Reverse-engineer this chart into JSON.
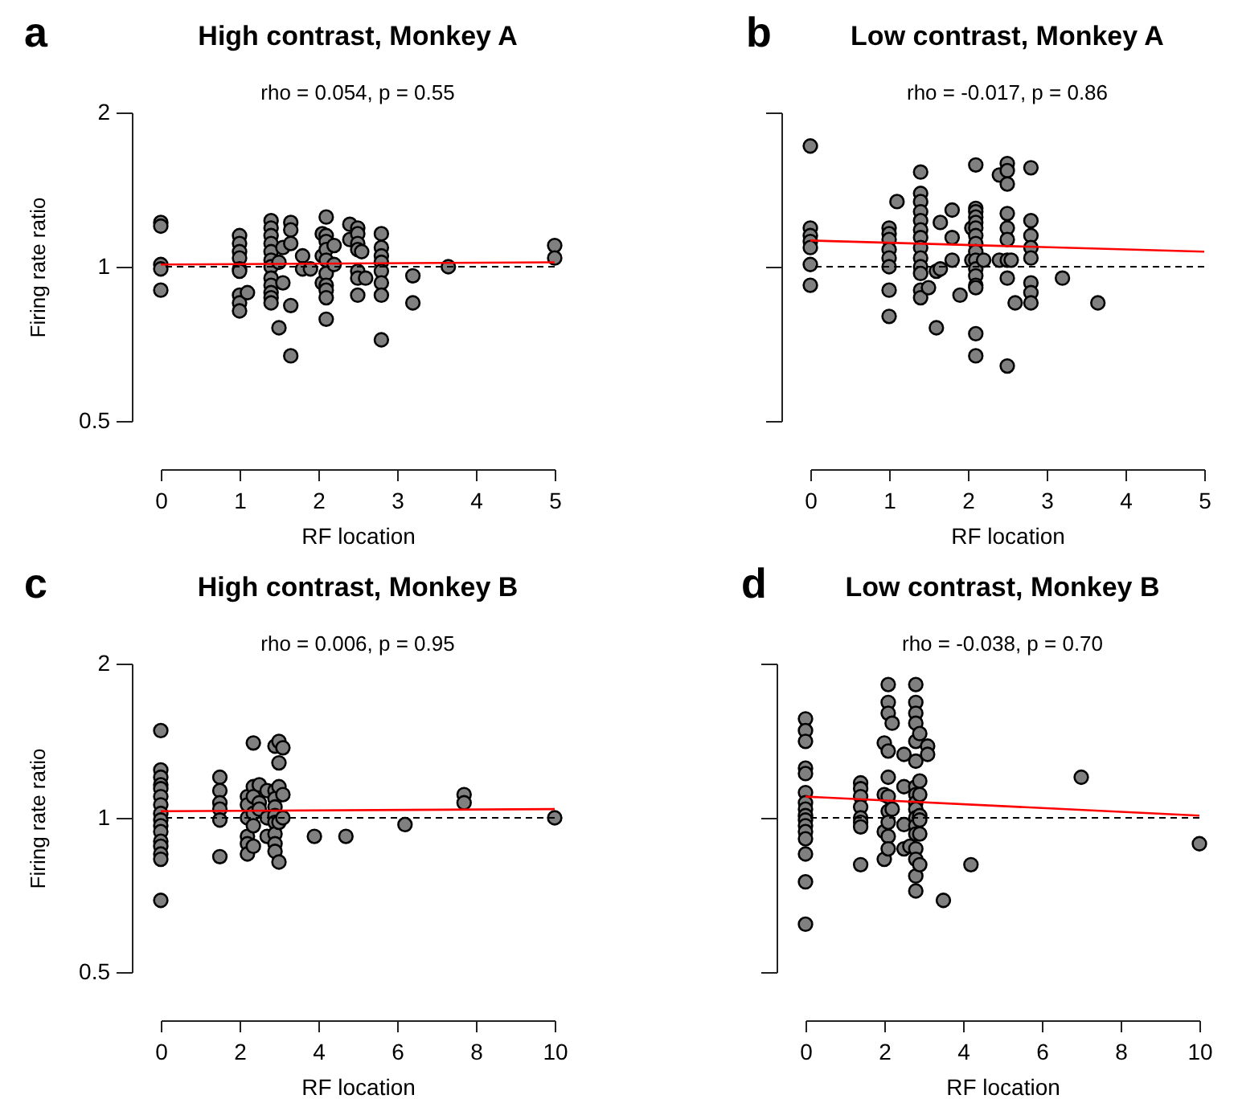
{
  "chart_data": [
    {
      "type": "scatter",
      "title": "High contrast, Monkey A",
      "subtitle": "rho = 0.054, p = 0.55",
      "xlabel": "RF location",
      "ylabel": "Firing rate ratio",
      "annotations": [
        "a"
      ],
      "log": "y",
      "xlim": [
        0,
        5
      ],
      "xticks": [
        0,
        1,
        2,
        3,
        4,
        5
      ],
      "ylim": [
        0.5,
        2
      ],
      "yticks": [
        0.5,
        1,
        2
      ],
      "grid": false,
      "marker": "circle",
      "series": [
        {
          "color": "#808080",
          "x": [
            0,
            0,
            0,
            0,
            0,
            1,
            1,
            1,
            1,
            1,
            1,
            1,
            1,
            1,
            1.1,
            1.4,
            1.4,
            1.4,
            1.4,
            1.4,
            1.4,
            1.4,
            1.4,
            1.4,
            1.4,
            1.4,
            1.4,
            1.5,
            1.5,
            1.55,
            1.55,
            1.65,
            1.65,
            1.65,
            1.65,
            1.65,
            1.8,
            1.8,
            1.9,
            2.05,
            2.05,
            2.05,
            2.1,
            2.1,
            2.1,
            2.1,
            2.1,
            2.1,
            2.1,
            2.1,
            2.1,
            2.1,
            2.2,
            2.2,
            2.4,
            2.4,
            2.5,
            2.5,
            2.5,
            2.5,
            2.5,
            2.5,
            2.5,
            2.55,
            2.6,
            2.8,
            2.8,
            2.8,
            2.8,
            2.8,
            2.8,
            2.8,
            2.8,
            3.2,
            3.2,
            3.65,
            5,
            5
          ],
          "values": [
            1.22,
            1.2,
            1.01,
            0.99,
            0.9,
            1.15,
            1.11,
            1.07,
            1.04,
            0.99,
            0.98,
            0.88,
            0.85,
            0.82,
            0.89,
            1.23,
            1.19,
            1.15,
            1.11,
            1.07,
            1.03,
            1.0,
            0.95,
            0.92,
            0.89,
            0.87,
            0.85,
            0.76,
            1.02,
            0.93,
            1.09,
            1.22,
            1.18,
            1.11,
            0.84,
            0.67,
            1.05,
            0.99,
            0.99,
            1.16,
            1.05,
            0.93,
            1.25,
            1.15,
            1.12,
            1.08,
            1.03,
            0.97,
            0.92,
            0.9,
            0.87,
            0.79,
            1.1,
            1.01,
            1.21,
            1.13,
            1.19,
            1.16,
            1.11,
            1.08,
            0.98,
            0.95,
            0.88,
            1.07,
            0.95,
            1.16,
            1.09,
            1.05,
            1.02,
            0.98,
            0.93,
            0.88,
            0.72,
            0.96,
            0.85,
            1.0,
            1.1,
            1.04
          ]
        },
        {
          "type": "line",
          "color": "#ff0000",
          "marker": "none",
          "x": [
            0,
            5
          ],
          "values": [
            1.01,
            1.02
          ]
        }
      ],
      "ref_lines": [
        {
          "axis": "y",
          "value": 1,
          "color": "#000000",
          "line_style": "dashed"
        }
      ]
    },
    {
      "type": "scatter",
      "title": "Low contrast, Monkey A",
      "subtitle": "rho = -0.017, p = 0.86",
      "xlabel": "RF location",
      "annotations": [
        "b"
      ],
      "log": "y",
      "tick_labels": "x",
      "xlim": [
        0,
        5
      ],
      "xticks": [
        0,
        1,
        2,
        3,
        4,
        5
      ],
      "ylim": [
        0.5,
        2
      ],
      "yticks": [
        0.5,
        1,
        2
      ],
      "grid": false,
      "marker": "circle",
      "series": [
        {
          "color": "#808080",
          "x": [
            0,
            0,
            0,
            0,
            0,
            0,
            0,
            1,
            1,
            1,
            1,
            1,
            1,
            1,
            1,
            1.1,
            1.4,
            1.4,
            1.4,
            1.4,
            1.4,
            1.4,
            1.4,
            1.4,
            1.4,
            1.4,
            1.4,
            1.4,
            1.4,
            1.5,
            1.6,
            1.6,
            1.65,
            1.65,
            1.8,
            1.8,
            1.8,
            1.9,
            2.05,
            2.05,
            2.1,
            2.1,
            2.1,
            2.1,
            2.1,
            2.1,
            2.1,
            2.1,
            2.1,
            2.1,
            2.1,
            2.1,
            2.1,
            2.1,
            2.1,
            2.1,
            2.2,
            2.4,
            2.4,
            2.5,
            2.5,
            2.5,
            2.5,
            2.5,
            2.5,
            2.5,
            2.5,
            2.5,
            2.55,
            2.6,
            2.8,
            2.8,
            2.8,
            2.8,
            2.8,
            2.8,
            2.8,
            2.8,
            3.2,
            3.65
          ],
          "values": [
            1.72,
            1.19,
            1.15,
            1.12,
            1.09,
            1.01,
            0.92,
            1.19,
            1.16,
            1.13,
            1.08,
            1.04,
            1.0,
            0.9,
            0.8,
            1.34,
            1.53,
            1.39,
            1.34,
            1.28,
            1.23,
            1.18,
            1.14,
            1.09,
            1.04,
            1.0,
            0.97,
            0.9,
            0.87,
            0.91,
            0.98,
            0.76,
            1.22,
            0.99,
            1.29,
            1.14,
            1.03,
            0.88,
            1.19,
            1.03,
            1.58,
            1.3,
            1.28,
            1.25,
            1.22,
            1.19,
            1.15,
            1.11,
            1.07,
            1.03,
            0.99,
            0.96,
            0.92,
            0.91,
            0.74,
            0.67,
            1.03,
            1.51,
            1.03,
            1.59,
            1.54,
            1.45,
            1.27,
            1.19,
            1.13,
            1.03,
            0.95,
            0.64,
            1.03,
            0.85,
            1.56,
            1.23,
            1.15,
            1.09,
            1.04,
            0.93,
            0.89,
            0.85,
            0.95,
            0.85
          ]
        },
        {
          "type": "line",
          "color": "#ff0000",
          "marker": "none",
          "x": [
            0,
            5
          ],
          "values": [
            1.125,
            1.07
          ]
        }
      ],
      "ref_lines": [
        {
          "axis": "y",
          "value": 1,
          "color": "#000000",
          "line_style": "dashed"
        }
      ]
    },
    {
      "type": "scatter",
      "title": "High contrast, Monkey B",
      "subtitle": "rho = 0.006, p = 0.95",
      "xlabel": "RF location",
      "ylabel": "Firing rate ratio",
      "annotations": [
        "c"
      ],
      "log": "y",
      "xlim": [
        0,
        10
      ],
      "xticks": [
        0,
        2,
        4,
        6,
        8,
        10
      ],
      "ylim": [
        0.5,
        2
      ],
      "yticks": [
        0.5,
        1,
        2
      ],
      "grid": false,
      "marker": "circle",
      "series": [
        {
          "color": "#808080",
          "x": [
            0,
            0,
            0,
            0,
            0,
            0,
            0,
            0,
            0,
            0,
            0,
            0,
            0,
            0,
            0,
            0,
            1.5,
            1.5,
            1.5,
            1.5,
            1.5,
            1.5,
            2.2,
            2.2,
            2.2,
            2.2,
            2.2,
            2.2,
            2.35,
            2.35,
            2.35,
            2.35,
            2.35,
            2.35,
            2.5,
            2.5,
            2.5,
            2.7,
            2.7,
            2.7,
            2.9,
            2.9,
            2.9,
            2.9,
            2.9,
            2.9,
            2.9,
            2.9,
            2.9,
            3.0,
            3.0,
            3.0,
            3.0,
            3.0,
            3.1,
            3.1,
            3.1,
            3.9,
            4.7,
            6.2,
            7.7,
            7.7,
            10
          ],
          "values": [
            1.48,
            1.24,
            1.2,
            1.16,
            1.14,
            1.1,
            1.06,
            1.02,
            0.99,
            0.965,
            0.94,
            0.9,
            0.88,
            0.85,
            0.83,
            0.69,
            1.2,
            1.13,
            1.07,
            1.04,
            0.99,
            0.84,
            1.1,
            1.06,
            1.0,
            0.92,
            0.89,
            0.85,
            1.4,
            1.15,
            1.1,
            1.02,
            0.965,
            0.88,
            1.16,
            1.07,
            1.04,
            1.13,
            1.0,
            0.92,
            1.38,
            1.13,
            1.09,
            1.05,
            1.01,
            0.98,
            0.93,
            0.89,
            0.86,
            1.41,
            1.28,
            1.15,
            0.98,
            0.82,
            1.37,
            1.11,
            1.0,
            0.92,
            0.92,
            0.97,
            1.11,
            1.07,
            1.0
          ]
        },
        {
          "type": "line",
          "color": "#ff0000",
          "marker": "none",
          "x": [
            0,
            10
          ],
          "values": [
            1.03,
            1.04
          ]
        }
      ],
      "ref_lines": [
        {
          "axis": "y",
          "value": 1,
          "color": "#000000",
          "line_style": "dashed"
        }
      ]
    },
    {
      "type": "scatter",
      "title": "Low contrast, Monkey B",
      "subtitle": "rho = -0.038, p = 0.70",
      "xlabel": "RF location",
      "annotations": [
        "d"
      ],
      "log": "y",
      "tick_labels": "x",
      "xlim": [
        0,
        10
      ],
      "xticks": [
        0,
        2,
        4,
        6,
        8,
        10
      ],
      "ylim": [
        0.5,
        2
      ],
      "yticks": [
        0.5,
        1,
        2
      ],
      "grid": false,
      "marker": "circle",
      "series": [
        {
          "color": "#808080",
          "x": [
            0,
            0,
            0,
            0,
            0,
            0,
            0,
            0,
            0,
            0,
            0,
            0,
            0,
            0,
            0,
            0,
            1.4,
            1.4,
            1.4,
            1.4,
            1.4,
            1.4,
            1.4,
            1.4,
            2.0,
            2.0,
            2.0,
            2.0,
            2.1,
            2.1,
            2.1,
            2.1,
            2.1,
            2.1,
            2.1,
            2.1,
            2.1,
            2.1,
            2.2,
            2.2,
            2.5,
            2.5,
            2.5,
            2.5,
            2.65,
            2.8,
            2.8,
            2.8,
            2.8,
            2.8,
            2.8,
            2.8,
            2.8,
            2.8,
            2.8,
            2.8,
            2.8,
            2.8,
            2.8,
            2.8,
            2.8,
            2.8,
            2.9,
            2.9,
            2.9,
            2.9,
            2.9,
            2.9,
            2.9,
            3.1,
            3.1,
            3.5,
            4.2,
            7.0,
            10
          ],
          "values": [
            1.56,
            1.48,
            1.41,
            1.25,
            1.22,
            1.12,
            1.07,
            1.04,
            1.01,
            0.99,
            0.965,
            0.94,
            0.91,
            0.85,
            0.75,
            0.62,
            1.17,
            1.14,
            1.1,
            1.05,
            1.0,
            0.98,
            0.96,
            0.81,
            1.4,
            1.11,
            0.94,
            0.83,
            1.82,
            1.68,
            1.6,
            1.35,
            1.2,
            1.1,
            1.03,
            0.98,
            0.92,
            0.87,
            1.53,
            1.04,
            1.33,
            1.15,
            0.97,
            0.87,
            0.88,
            1.82,
            1.68,
            1.6,
            1.53,
            1.41,
            1.29,
            1.15,
            1.11,
            1.07,
            1.04,
            1.0,
            0.965,
            0.93,
            0.87,
            0.83,
            0.77,
            0.72,
            1.46,
            1.18,
            1.11,
            1.01,
            0.99,
            0.93,
            0.81,
            1.38,
            1.33,
            0.69,
            0.81,
            1.2,
            0.89
          ]
        },
        {
          "type": "line",
          "color": "#ff0000",
          "marker": "none",
          "x": [
            0,
            10
          ],
          "values": [
            1.1,
            1.01
          ]
        }
      ],
      "ref_lines": [
        {
          "axis": "y",
          "value": 1,
          "color": "#000000",
          "line_style": "dashed"
        }
      ]
    }
  ]
}
